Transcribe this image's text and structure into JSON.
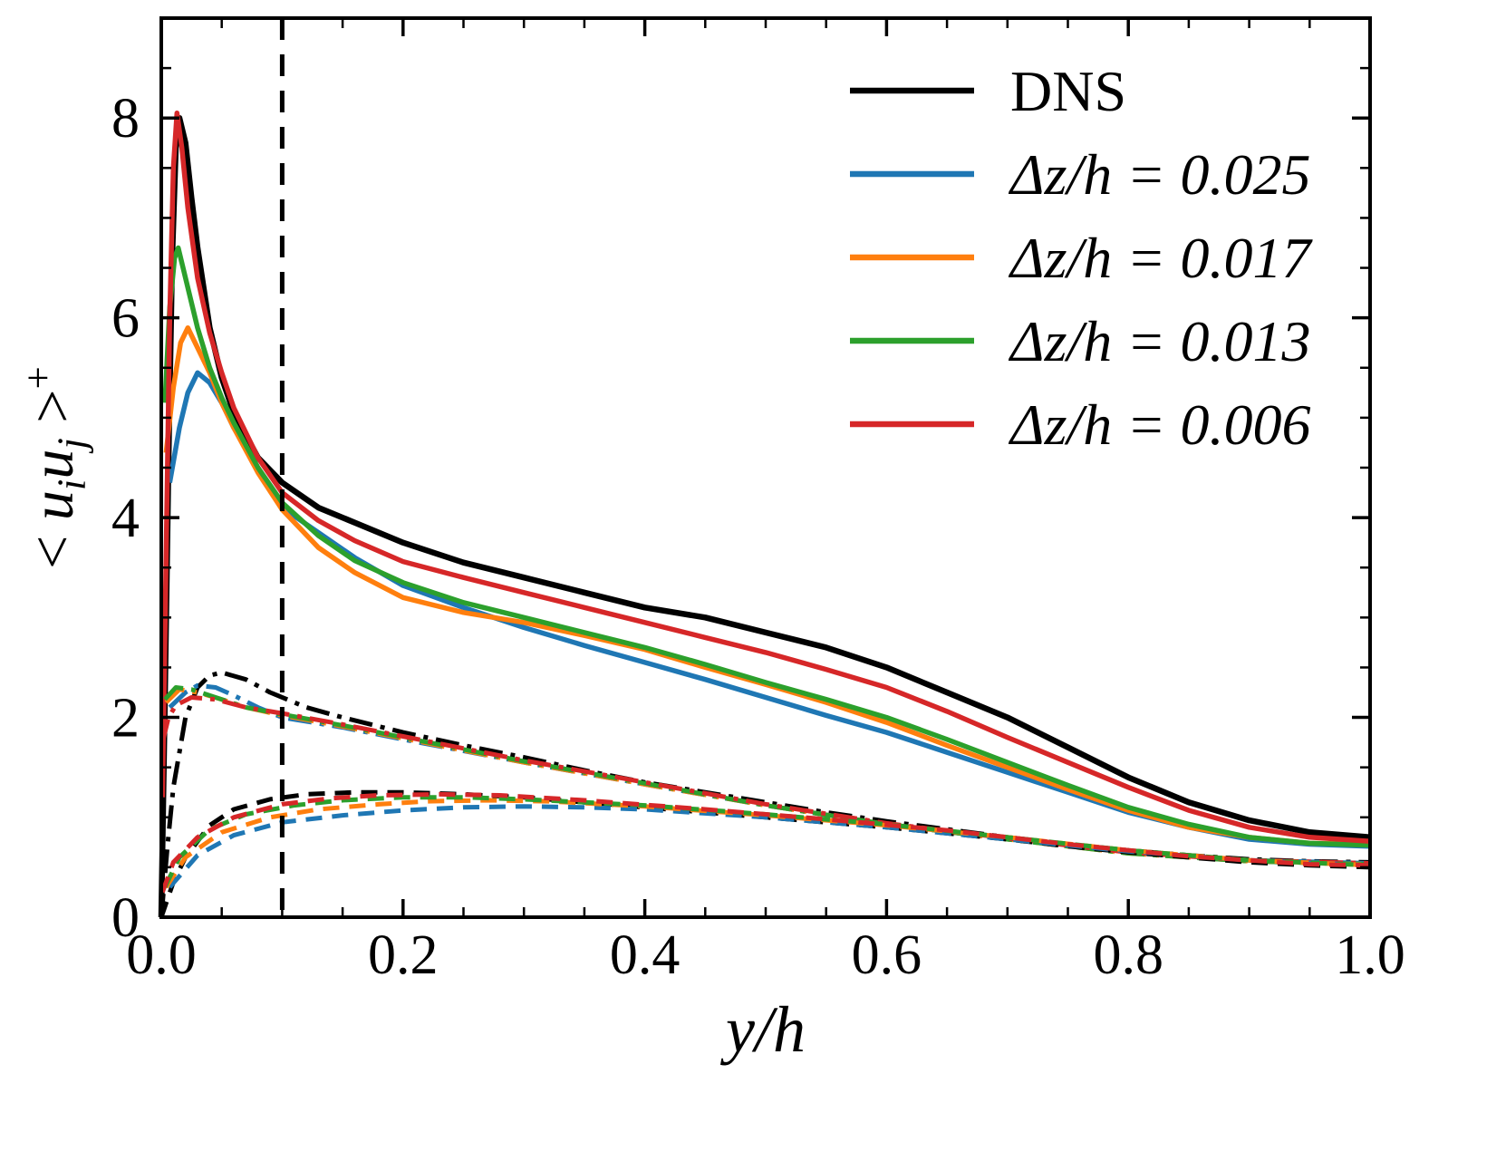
{
  "figure": {
    "background": "#ffffff",
    "accent_colors": {
      "dns": "#000000",
      "blue": "#1f77b4",
      "orange": "#ff7f0e",
      "green": "#2ca02c",
      "red": "#d62728"
    }
  },
  "chart_data": {
    "type": "line",
    "title": "",
    "xlabel": "y/h",
    "ylabel": "< u_i u_j >^+",
    "ylabel_parts": [
      {
        "text": "< ",
        "kind": "roman"
      },
      {
        "text": "u",
        "kind": "italic"
      },
      {
        "text": "i",
        "kind": "sub"
      },
      {
        "text": "u",
        "kind": "italic"
      },
      {
        "text": "j",
        "kind": "sub"
      },
      {
        "text": " >",
        "kind": "roman"
      },
      {
        "text": "+",
        "kind": "sup"
      }
    ],
    "xlim": [
      0,
      1.0
    ],
    "ylim": [
      0,
      9
    ],
    "grid": false,
    "xticks": {
      "values": [
        0,
        0.2,
        0.4,
        0.6,
        0.8,
        1.0
      ],
      "labels": [
        "0.0",
        "0.2",
        "0.4",
        "0.6",
        "0.8",
        "1.0"
      ],
      "minor": [
        0.05,
        0.1,
        0.15,
        0.25,
        0.3,
        0.35,
        0.45,
        0.5,
        0.55,
        0.65,
        0.7,
        0.75,
        0.85,
        0.9,
        0.95
      ]
    },
    "yticks": {
      "values": [
        0,
        2,
        4,
        6,
        8
      ],
      "labels": [
        "0",
        "2",
        "4",
        "6",
        "8"
      ],
      "minor": [
        0.5,
        1,
        1.5,
        2.5,
        3,
        3.5,
        4.5,
        5,
        5.5,
        6.5,
        7,
        7.5,
        8.5
      ]
    },
    "vline": {
      "x": 0.1,
      "linestyle": "dashed",
      "color": "#000000"
    },
    "legend": {
      "position": "upper right",
      "entries": [
        {
          "label": "DNS",
          "color": "#000000",
          "italic": false
        },
        {
          "label": "Δz/h = 0.025",
          "color": "#1f77b4",
          "italic": true
        },
        {
          "label": "Δz/h = 0.017",
          "color": "#ff7f0e",
          "italic": true
        },
        {
          "label": "Δz/h = 0.013",
          "color": "#2ca02c",
          "italic": true
        },
        {
          "label": "Δz/h = 0.006",
          "color": "#d62728",
          "italic": true
        }
      ]
    },
    "series": [
      {
        "id": "dns-solid",
        "group": "DNS",
        "color": "#000000",
        "linestyle": "solid",
        "width": 6.5,
        "x": [
          0,
          0.003,
          0.006,
          0.009,
          0.012,
          0.015,
          0.02,
          0.025,
          0.03,
          0.04,
          0.05,
          0.06,
          0.08,
          0.1,
          0.13,
          0.16,
          0.2,
          0.25,
          0.3,
          0.35,
          0.4,
          0.45,
          0.5,
          0.55,
          0.6,
          0.65,
          0.7,
          0.75,
          0.8,
          0.85,
          0.9,
          0.95,
          1.0
        ],
        "y": [
          0,
          2.2,
          4.6,
          6.6,
          7.7,
          8.0,
          7.75,
          7.2,
          6.7,
          5.9,
          5.4,
          5.05,
          4.6,
          4.35,
          4.1,
          3.95,
          3.75,
          3.55,
          3.4,
          3.25,
          3.1,
          3.0,
          2.85,
          2.7,
          2.5,
          2.25,
          2.0,
          1.7,
          1.4,
          1.15,
          0.97,
          0.85,
          0.8
        ]
      },
      {
        "id": "dz0025-solid",
        "group": "Δz/h = 0.025",
        "color": "#1f77b4",
        "linestyle": "solid",
        "width": 5.5,
        "x": [
          0.007,
          0.015,
          0.022,
          0.03,
          0.04,
          0.05,
          0.06,
          0.08,
          0.1,
          0.13,
          0.16,
          0.2,
          0.25,
          0.3,
          0.35,
          0.4,
          0.45,
          0.5,
          0.55,
          0.6,
          0.65,
          0.7,
          0.75,
          0.8,
          0.85,
          0.9,
          0.95,
          1.0
        ],
        "y": [
          4.35,
          4.9,
          5.25,
          5.45,
          5.35,
          5.15,
          4.9,
          4.5,
          4.1,
          3.85,
          3.6,
          3.32,
          3.1,
          2.9,
          2.72,
          2.55,
          2.38,
          2.2,
          2.02,
          1.85,
          1.65,
          1.45,
          1.25,
          1.05,
          0.9,
          0.78,
          0.73,
          0.71
        ]
      },
      {
        "id": "dz0017-solid",
        "group": "Δz/h = 0.017",
        "color": "#ff7f0e",
        "linestyle": "solid",
        "width": 5.5,
        "x": [
          0.004,
          0.01,
          0.016,
          0.022,
          0.03,
          0.04,
          0.05,
          0.06,
          0.08,
          0.1,
          0.13,
          0.16,
          0.2,
          0.25,
          0.3,
          0.35,
          0.4,
          0.45,
          0.5,
          0.55,
          0.6,
          0.65,
          0.7,
          0.75,
          0.8,
          0.85,
          0.9,
          0.95,
          1.0
        ],
        "y": [
          4.65,
          5.3,
          5.75,
          5.9,
          5.7,
          5.45,
          5.15,
          4.9,
          4.45,
          4.08,
          3.7,
          3.45,
          3.2,
          3.05,
          2.95,
          2.82,
          2.68,
          2.5,
          2.33,
          2.15,
          1.95,
          1.72,
          1.5,
          1.28,
          1.07,
          0.9,
          0.8,
          0.74,
          0.73
        ]
      },
      {
        "id": "dz0013-solid",
        "group": "Δz/h = 0.013",
        "color": "#2ca02c",
        "linestyle": "solid",
        "width": 5.5,
        "x": [
          0.003,
          0.007,
          0.011,
          0.014,
          0.02,
          0.03,
          0.04,
          0.05,
          0.06,
          0.08,
          0.1,
          0.13,
          0.16,
          0.2,
          0.25,
          0.3,
          0.35,
          0.4,
          0.45,
          0.5,
          0.55,
          0.6,
          0.65,
          0.7,
          0.75,
          0.8,
          0.85,
          0.9,
          0.95,
          1.0
        ],
        "y": [
          5.15,
          6.1,
          6.6,
          6.7,
          6.4,
          5.9,
          5.5,
          5.2,
          4.95,
          4.5,
          4.15,
          3.82,
          3.57,
          3.35,
          3.15,
          3.0,
          2.85,
          2.7,
          2.53,
          2.35,
          2.18,
          2.0,
          1.78,
          1.55,
          1.32,
          1.1,
          0.93,
          0.8,
          0.74,
          0.72
        ]
      },
      {
        "id": "dz0006-solid",
        "group": "Δz/h = 0.006",
        "color": "#d62728",
        "linestyle": "solid",
        "width": 5.5,
        "x": [
          0.001,
          0.004,
          0.007,
          0.01,
          0.013,
          0.017,
          0.022,
          0.03,
          0.04,
          0.05,
          0.06,
          0.08,
          0.1,
          0.13,
          0.16,
          0.2,
          0.25,
          0.3,
          0.35,
          0.4,
          0.45,
          0.5,
          0.55,
          0.6,
          0.65,
          0.7,
          0.75,
          0.8,
          0.85,
          0.9,
          0.95,
          1.0
        ],
        "y": [
          1.2,
          3.6,
          6.0,
          7.5,
          8.05,
          7.7,
          7.1,
          6.4,
          5.85,
          5.45,
          5.1,
          4.6,
          4.25,
          3.97,
          3.77,
          3.56,
          3.4,
          3.25,
          3.1,
          2.95,
          2.8,
          2.65,
          2.48,
          2.3,
          2.06,
          1.8,
          1.55,
          1.3,
          1.07,
          0.9,
          0.8,
          0.76
        ]
      },
      {
        "id": "dns-dashdot",
        "group": "DNS",
        "color": "#000000",
        "linestyle": "dashdot",
        "width": 5,
        "x": [
          0,
          0.005,
          0.01,
          0.02,
          0.03,
          0.04,
          0.05,
          0.07,
          0.09,
          0.12,
          0.15,
          0.2,
          0.25,
          0.3,
          0.35,
          0.4,
          0.45,
          0.5,
          0.55,
          0.6,
          0.65,
          0.7,
          0.75,
          0.8,
          0.85,
          0.9,
          0.95,
          1.0
        ],
        "y": [
          0,
          0.7,
          1.3,
          2.0,
          2.3,
          2.42,
          2.45,
          2.38,
          2.25,
          2.1,
          2.0,
          1.85,
          1.72,
          1.6,
          1.47,
          1.35,
          1.25,
          1.15,
          1.05,
          0.96,
          0.88,
          0.8,
          0.73,
          0.67,
          0.62,
          0.58,
          0.56,
          0.55
        ]
      },
      {
        "id": "dz0025-dashdot",
        "group": "Δz/h = 0.025",
        "color": "#1f77b4",
        "linestyle": "dashdot",
        "width": 5,
        "x": [
          0.007,
          0.02,
          0.03,
          0.045,
          0.06,
          0.08,
          0.1,
          0.15,
          0.2,
          0.3,
          0.4,
          0.5,
          0.6,
          0.7,
          0.8,
          0.9,
          1.0
        ],
        "y": [
          2.1,
          2.25,
          2.32,
          2.3,
          2.22,
          2.1,
          2.0,
          1.9,
          1.78,
          1.55,
          1.33,
          1.12,
          0.93,
          0.78,
          0.65,
          0.57,
          0.54
        ]
      },
      {
        "id": "dz0017-dashdot",
        "group": "Δz/h = 0.017",
        "color": "#ff7f0e",
        "linestyle": "dashdot",
        "width": 5,
        "x": [
          0.004,
          0.015,
          0.03,
          0.05,
          0.07,
          0.1,
          0.15,
          0.2,
          0.3,
          0.4,
          0.5,
          0.6,
          0.7,
          0.8,
          0.9,
          1.0
        ],
        "y": [
          2.15,
          2.28,
          2.25,
          2.18,
          2.1,
          2.02,
          1.91,
          1.79,
          1.55,
          1.33,
          1.12,
          0.93,
          0.78,
          0.64,
          0.56,
          0.53
        ]
      },
      {
        "id": "dz0013-dashdot",
        "group": "Δz/h = 0.013",
        "color": "#2ca02c",
        "linestyle": "dashdot",
        "width": 5,
        "x": [
          0.003,
          0.012,
          0.025,
          0.045,
          0.07,
          0.1,
          0.15,
          0.2,
          0.3,
          0.4,
          0.5,
          0.6,
          0.7,
          0.8,
          0.9,
          1.0
        ],
        "y": [
          2.18,
          2.3,
          2.28,
          2.2,
          2.1,
          2.03,
          1.92,
          1.8,
          1.56,
          1.34,
          1.12,
          0.93,
          0.78,
          0.64,
          0.56,
          0.53
        ]
      },
      {
        "id": "dz0006-dashdot",
        "group": "Δz/h = 0.006",
        "color": "#d62728",
        "linestyle": "dashdot",
        "width": 5,
        "x": [
          0.001,
          0.006,
          0.012,
          0.025,
          0.045,
          0.07,
          0.1,
          0.15,
          0.2,
          0.3,
          0.4,
          0.5,
          0.6,
          0.7,
          0.8,
          0.9,
          1.0
        ],
        "y": [
          1.75,
          2.0,
          2.12,
          2.2,
          2.18,
          2.1,
          2.04,
          1.93,
          1.81,
          1.57,
          1.35,
          1.13,
          0.94,
          0.79,
          0.65,
          0.57,
          0.54
        ]
      },
      {
        "id": "dns-dashed",
        "group": "DNS",
        "color": "#000000",
        "linestyle": "dashed",
        "width": 5,
        "x": [
          0,
          0.01,
          0.02,
          0.04,
          0.06,
          0.09,
          0.12,
          0.16,
          0.2,
          0.25,
          0.3,
          0.35,
          0.4,
          0.45,
          0.5,
          0.55,
          0.6,
          0.65,
          0.7,
          0.75,
          0.8,
          0.85,
          0.9,
          0.95,
          1.0
        ],
        "y": [
          0,
          0.35,
          0.6,
          0.92,
          1.08,
          1.18,
          1.23,
          1.25,
          1.25,
          1.23,
          1.2,
          1.15,
          1.1,
          1.05,
          1.0,
          0.95,
          0.9,
          0.84,
          0.78,
          0.71,
          0.65,
          0.6,
          0.55,
          0.52,
          0.5
        ]
      },
      {
        "id": "dz0025-dashed",
        "group": "Δz/h = 0.025",
        "color": "#1f77b4",
        "linestyle": "dashed",
        "width": 5,
        "x": [
          0.007,
          0.03,
          0.06,
          0.1,
          0.15,
          0.2,
          0.25,
          0.3,
          0.35,
          0.4,
          0.5,
          0.6,
          0.7,
          0.8,
          0.9,
          1.0
        ],
        "y": [
          0.3,
          0.62,
          0.82,
          0.95,
          1.02,
          1.07,
          1.1,
          1.11,
          1.1,
          1.08,
          1.0,
          0.9,
          0.78,
          0.66,
          0.57,
          0.52
        ]
      },
      {
        "id": "dz0017-dashed",
        "group": "Δz/h = 0.017",
        "color": "#ff7f0e",
        "linestyle": "dashed",
        "width": 5,
        "x": [
          0.004,
          0.02,
          0.05,
          0.09,
          0.13,
          0.18,
          0.22,
          0.27,
          0.32,
          0.4,
          0.5,
          0.6,
          0.7,
          0.8,
          0.9,
          1.0
        ],
        "y": [
          0.3,
          0.6,
          0.85,
          1.0,
          1.08,
          1.13,
          1.16,
          1.17,
          1.16,
          1.11,
          1.02,
          0.92,
          0.8,
          0.67,
          0.57,
          0.52
        ]
      },
      {
        "id": "dz0013-dashed",
        "group": "Δz/h = 0.013",
        "color": "#2ca02c",
        "linestyle": "dashed",
        "width": 5,
        "x": [
          0.003,
          0.015,
          0.04,
          0.07,
          0.11,
          0.15,
          0.2,
          0.25,
          0.3,
          0.4,
          0.5,
          0.6,
          0.7,
          0.8,
          0.9,
          1.0
        ],
        "y": [
          0.3,
          0.6,
          0.88,
          1.03,
          1.12,
          1.17,
          1.2,
          1.2,
          1.18,
          1.12,
          1.03,
          0.93,
          0.8,
          0.67,
          0.57,
          0.52
        ]
      },
      {
        "id": "dz0006-dashed",
        "group": "Δz/h = 0.006",
        "color": "#d62728",
        "linestyle": "dashed",
        "width": 5,
        "x": [
          0.001,
          0.01,
          0.03,
          0.06,
          0.1,
          0.14,
          0.18,
          0.23,
          0.28,
          0.35,
          0.45,
          0.55,
          0.65,
          0.75,
          0.85,
          0.95,
          1.0
        ],
        "y": [
          0.25,
          0.55,
          0.8,
          1.0,
          1.13,
          1.19,
          1.22,
          1.23,
          1.22,
          1.17,
          1.08,
          0.98,
          0.87,
          0.73,
          0.61,
          0.53,
          0.52
        ]
      }
    ]
  }
}
